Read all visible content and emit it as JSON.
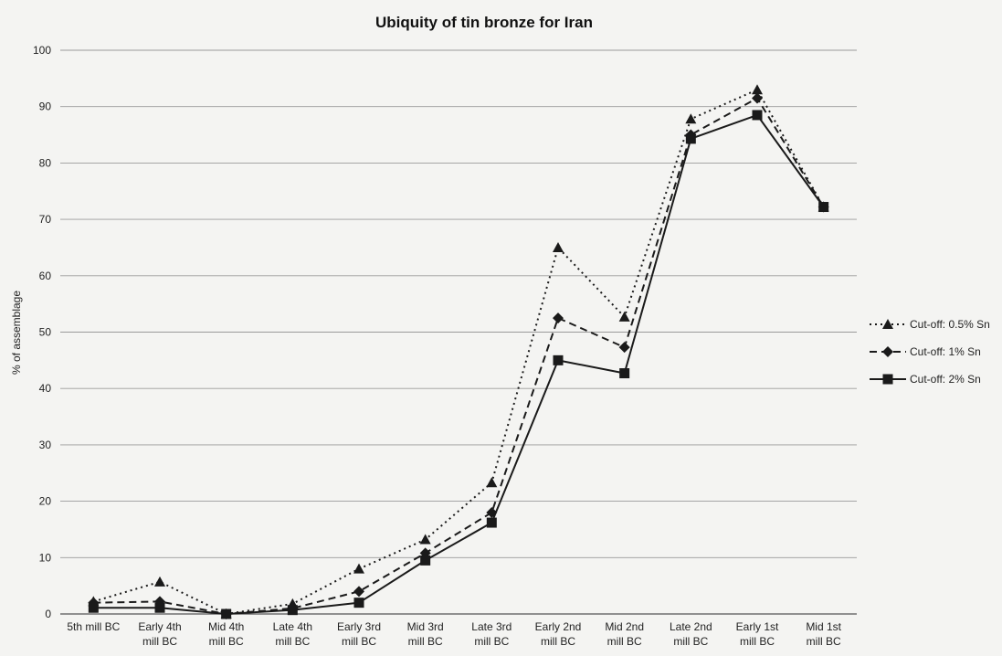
{
  "chart_data": {
    "type": "line",
    "title": "Ubiquity of tin bronze for Iran",
    "xlabel": "",
    "ylabel": "% of assemblage",
    "ylim": [
      0,
      100
    ],
    "yticks": [
      0,
      10,
      20,
      30,
      40,
      50,
      60,
      70,
      80,
      90,
      100
    ],
    "grid": "horizontal",
    "legend_position": "right",
    "categories": [
      [
        "5th mill BC"
      ],
      [
        "Early 4th",
        "mill BC"
      ],
      [
        "Mid 4th",
        "mill BC"
      ],
      [
        "Late 4th",
        "mill BC"
      ],
      [
        "Early 3rd",
        "mill BC"
      ],
      [
        "Mid 3rd",
        "mill BC"
      ],
      [
        "Late 3rd",
        "mill BC"
      ],
      [
        "Early 2nd",
        "mill BC"
      ],
      [
        "Mid 2nd",
        "mill BC"
      ],
      [
        "Late 2nd",
        "mill BC"
      ],
      [
        "Early 1st",
        "mill BC"
      ],
      [
        "Mid 1st",
        "mill BC"
      ]
    ],
    "series": [
      {
        "name": "Cut-off: 0.5% Sn",
        "marker": "triangle",
        "line_style": "dotted",
        "values": [
          2.2,
          5.7,
          0,
          1.8,
          8.0,
          13.2,
          23.3,
          65.0,
          52.7,
          87.8,
          93.0,
          72.2
        ]
      },
      {
        "name": "Cut-off: 1% Sn",
        "marker": "diamond",
        "line_style": "dashed",
        "values": [
          2.0,
          2.2,
          0,
          1.0,
          4.0,
          10.8,
          18.0,
          52.5,
          47.3,
          85.0,
          91.5,
          72.2
        ]
      },
      {
        "name": "Cut-off: 2% Sn",
        "marker": "square",
        "line_style": "solid",
        "values": [
          1.1,
          1.1,
          0,
          0.7,
          2.0,
          9.5,
          16.2,
          45.0,
          42.7,
          84.3,
          88.5,
          72.2
        ]
      }
    ],
    "colors": {
      "line": "#1a1a1a",
      "grid": "#9a9a9a",
      "axis": "#555555"
    }
  }
}
